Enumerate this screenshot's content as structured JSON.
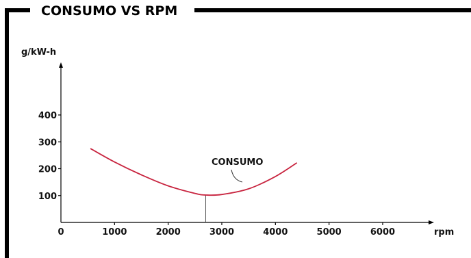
{
  "chart_data": {
    "type": "line",
    "title": "CONSUMO VS RPM",
    "xlabel": "rpm",
    "ylabel": "g/kW-h",
    "xlim": [
      0,
      7000
    ],
    "ylim": [
      0,
      450
    ],
    "x_ticks": [
      0,
      1000,
      2000,
      3000,
      4000,
      5000,
      6000
    ],
    "y_ticks": [
      100,
      200,
      300,
      400
    ],
    "grid": false,
    "legend": "none",
    "series": [
      {
        "name": "CONSUMO",
        "color": "#c8243f",
        "x": [
          550,
          1000,
          1500,
          2000,
          2500,
          2700,
          3000,
          3500,
          4000,
          4400
        ],
        "y": [
          275,
          225,
          177,
          136,
          108,
          102,
          104,
          125,
          171,
          222
        ]
      }
    ],
    "annotations": [
      {
        "type": "vertical-line",
        "x": 2700,
        "from_y": 0,
        "to_y": 102
      }
    ]
  }
}
